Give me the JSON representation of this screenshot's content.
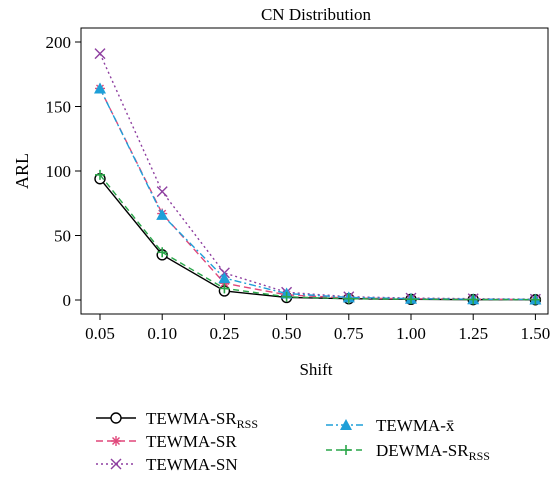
{
  "chart_data": {
    "type": "line",
    "title": "CN Distribution",
    "xlabel": "Shift",
    "ylabel": "ARL",
    "categories": [
      "0.05",
      "0.10",
      "0.25",
      "0.50",
      "0.75",
      "1.00",
      "1.25",
      "1.50"
    ],
    "y_ticks": [
      "0",
      "50",
      "100",
      "150",
      "200"
    ],
    "ylim": [
      0,
      210
    ],
    "grid": false,
    "legend_position": "bottom",
    "series": [
      {
        "name": "TEWMA-SR",
        "name_sub": "RSS",
        "values": [
          94,
          35,
          7,
          2,
          1,
          0.5,
          0.3,
          0.2
        ],
        "color": "#000000",
        "marker": "circle",
        "dash": "none"
      },
      {
        "name": "TEWMA-SR",
        "name_sub": "",
        "values": [
          164,
          67,
          13,
          4,
          1.5,
          1,
          0.6,
          0.4
        ],
        "color": "#e0477a",
        "marker": "asterisk",
        "dash": "7,4"
      },
      {
        "name": "TEWMA-SN",
        "name_sub": "",
        "values": [
          191,
          84,
          21,
          6,
          2.5,
          1.5,
          1,
          0.6
        ],
        "color": "#8e3fa0",
        "marker": "x",
        "dash": "2,3"
      },
      {
        "name": "TEWMA-x̄",
        "name_sub": "",
        "values": [
          164,
          66,
          17,
          5,
          2,
          1,
          0.6,
          0.4
        ],
        "color": "#1e9fd8",
        "marker": "triangle",
        "dash": "7,3,2,3"
      },
      {
        "name": "DEWMA-SR",
        "name_sub": "RSS",
        "values": [
          97,
          37,
          9,
          2.5,
          1,
          0.6,
          0.4,
          0.3
        ],
        "color": "#2aa64a",
        "marker": "plus",
        "dash": "6,4"
      }
    ]
  }
}
